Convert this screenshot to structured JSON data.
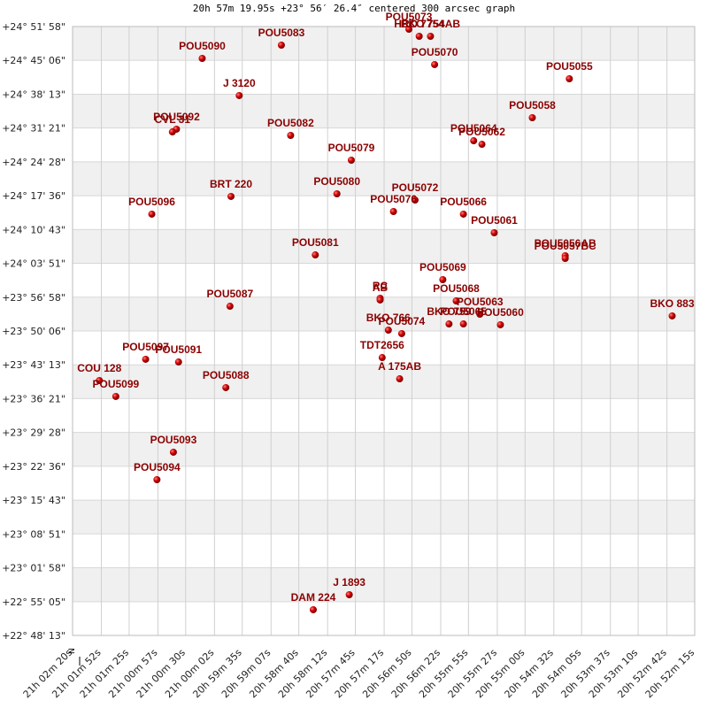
{
  "chart_data": {
    "type": "scatter",
    "title": "20h 57m 19.95s +23° 56′ 26.4″ centered 300 arcsec graph",
    "compass_label": "N",
    "xlim": [
      300.05,
      -304.95
    ],
    "ylim": [
      -4093.4,
      3331.6
    ],
    "xticks": [
      {
        "value": 300.05,
        "label": "21h 02m 20s"
      },
      {
        "value": 272.05,
        "label": "21h 01m 52s"
      },
      {
        "value": 245.05,
        "label": "21h 01m 25s"
      },
      {
        "value": 217.05,
        "label": "21h 00m 57s"
      },
      {
        "value": 190.05,
        "label": "21h 00m 30s"
      },
      {
        "value": 162.05,
        "label": "21h 00m 02s"
      },
      {
        "value": 135.05,
        "label": "20h 59m 35s"
      },
      {
        "value": 107.05,
        "label": "20h 59m 07s"
      },
      {
        "value": 80.05,
        "label": "20h 58m 40s"
      },
      {
        "value": 52.05,
        "label": "20h 58m 12s"
      },
      {
        "value": 25.05,
        "label": "20h 57m 45s"
      },
      {
        "value": -2.95,
        "label": "20h 57m 17s"
      },
      {
        "value": -29.95,
        "label": "20h 56m 50s"
      },
      {
        "value": -57.95,
        "label": "20h 56m 22s"
      },
      {
        "value": -84.95,
        "label": "20h 55m 55s"
      },
      {
        "value": -112.95,
        "label": "20h 55m 27s"
      },
      {
        "value": -139.95,
        "label": "20h 55m 00s"
      },
      {
        "value": -167.95,
        "label": "20h 54m 32s"
      },
      {
        "value": -194.95,
        "label": "20h 54m 05s"
      },
      {
        "value": -222.95,
        "label": "20h 53m 37s"
      },
      {
        "value": -249.95,
        "label": "20h 53m 10s"
      },
      {
        "value": -277.95,
        "label": "20h 52m 42s"
      },
      {
        "value": -304.95,
        "label": "20h 52m 15s"
      }
    ],
    "yticks": [
      {
        "value": 3331.6,
        "label": "+24° 51' 58\""
      },
      {
        "value": 2919.6,
        "label": "+24° 45' 06\""
      },
      {
        "value": 2506.6,
        "label": "+24° 38' 13\""
      },
      {
        "value": 2094.6,
        "label": "+24° 31' 21\""
      },
      {
        "value": 1681.6,
        "label": "+24° 24' 28\""
      },
      {
        "value": 1269.6,
        "label": "+24° 17' 36\""
      },
      {
        "value": 856.6,
        "label": "+24° 10' 43\""
      },
      {
        "value": 444.6,
        "label": "+24° 03' 51\""
      },
      {
        "value": 31.6,
        "label": "+23° 56' 58\""
      },
      {
        "value": -380.4,
        "label": "+23° 50' 06\""
      },
      {
        "value": -793.4,
        "label": "+23° 43' 13\""
      },
      {
        "value": -1205.4,
        "label": "+23° 36' 21\""
      },
      {
        "value": -1618.4,
        "label": "+23° 29' 28\""
      },
      {
        "value": -2030.4,
        "label": "+23° 22' 36\""
      },
      {
        "value": -2443.4,
        "label": "+23° 15' 43\""
      },
      {
        "value": -2855.4,
        "label": "+23° 08' 51\""
      },
      {
        "value": -3268.4,
        "label": "+23° 01' 58\""
      },
      {
        "value": -3681.4,
        "label": "+22° 55' 05\""
      },
      {
        "value": -4093.4,
        "label": "+22° 48' 13\""
      }
    ],
    "grid": true,
    "color": "#cc0000",
    "label_color": "#8b0000",
    "point_labels": [
      "POU5073",
      "HRO 7754",
      "BKO 754AB",
      "POU5090",
      "POU5083",
      "POU5070",
      "POU5055",
      "J  3120",
      "POU5092",
      "CVL  31",
      "POU5082",
      "POU5058",
      "POU5064",
      "POU5062",
      "POU5079",
      "POU5080",
      "BRT 220",
      "POU5072",
      "POU5076",
      "POU5066",
      "POU5096",
      "POU5061",
      "POU5081",
      "POU5056AB",
      "POU5057BC",
      "POU5069",
      "POU5087",
      "RC",
      "AB",
      "POU5068",
      "POU5063",
      "BKO 766",
      "POU5074",
      "BKO 759",
      "POU5065",
      "POU5060",
      "BKO 883",
      "TDT2656",
      "A   175AB",
      "POU5097",
      "POU5091",
      "COU 128",
      "POU5099",
      "POU5088",
      "POU5093",
      "POU5094",
      "J  1893",
      "DAM 224"
    ],
    "x": [
      -27,
      -37,
      -48,
      174,
      97,
      -52,
      -183,
      138,
      199,
      203,
      88,
      -147,
      -90,
      -98,
      29,
      43,
      146,
      -33,
      -12,
      -80,
      223,
      -110,
      64,
      -179,
      -179,
      -60,
      147,
      1,
      1,
      -73,
      -96,
      -7,
      -20,
      -66,
      -80,
      -116,
      -283,
      -1,
      -18,
      229,
      197,
      274,
      258,
      151,
      202,
      218,
      31,
      66
    ],
    "values": [
      3299,
      3213,
      3213,
      2943,
      3105,
      2868,
      2695,
      2490,
      2080,
      2047,
      2004,
      2220,
      1939,
      1896,
      1702,
      1292,
      1260,
      1216,
      1076,
      1044,
      1044,
      817,
      547,
      537,
      504,
      245,
      -79,
      19,
      -3,
      -14,
      -176,
      -370,
      -413,
      -295,
      -295,
      -305,
      -197,
      -705,
      -964,
      -726,
      -759,
      -985,
      -1179,
      -1071,
      -1859,
      -2194,
      -3597,
      -3780
    ]
  }
}
